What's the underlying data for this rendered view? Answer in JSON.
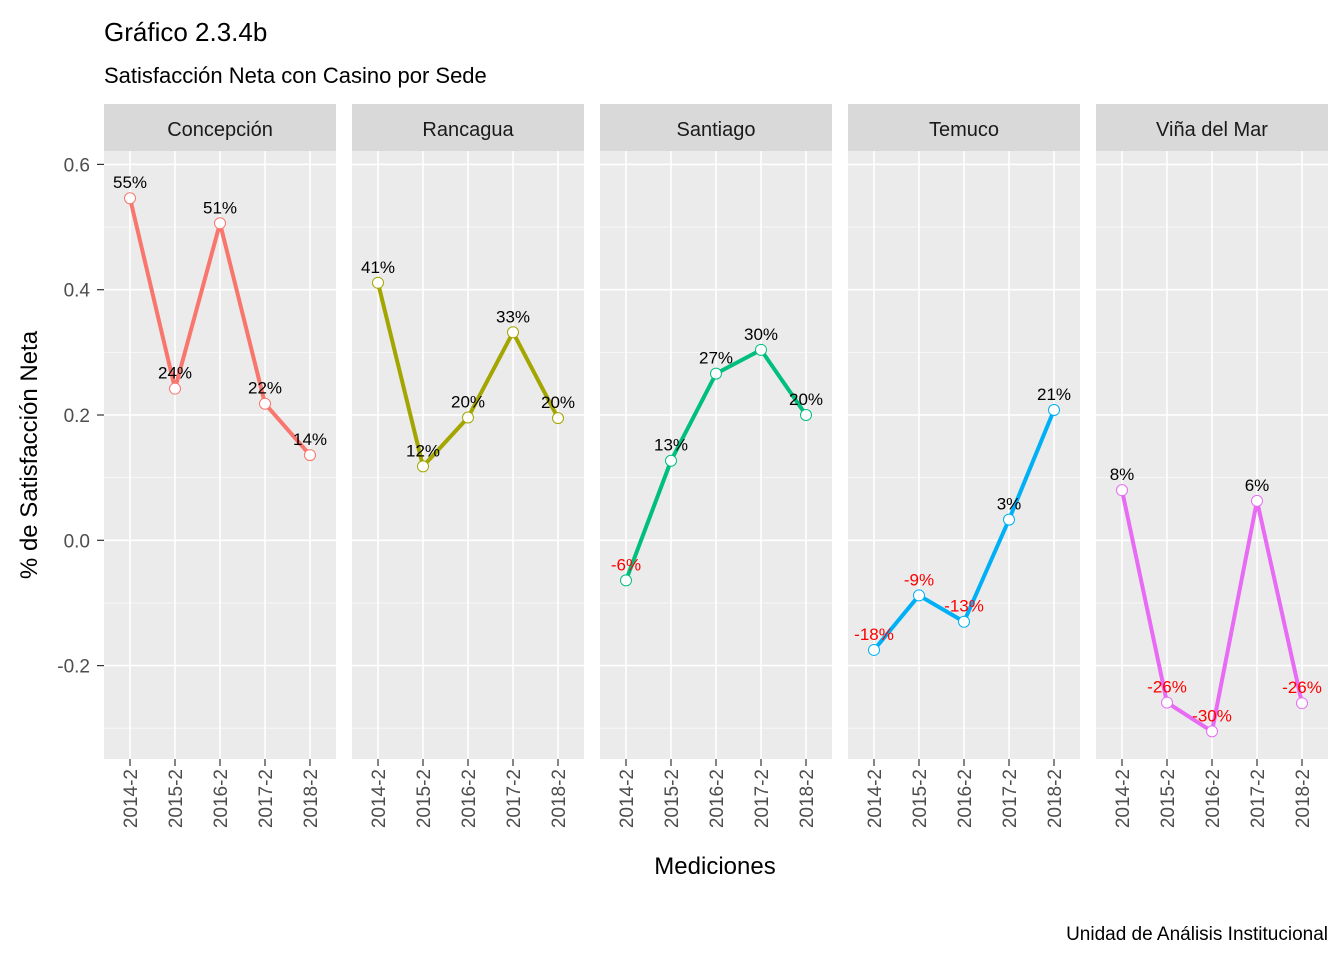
{
  "chart_data": {
    "type": "line",
    "title": "Gráfico 2.3.4b",
    "subtitle": "Satisfacción Neta con Casino por Sede",
    "xlabel": "Mediciones",
    "ylabel": "% de Satisfacción Neta",
    "caption": "Unidad de Análisis Institucional",
    "categories": [
      "2014-2",
      "2015-2",
      "2016-2",
      "2017-2",
      "2018-2"
    ],
    "ylim": [
      -0.35,
      0.6
    ],
    "yticks": [
      -0.2,
      0.0,
      0.2,
      0.4,
      0.6
    ],
    "ytick_labels": [
      "-0.2",
      "0.0",
      "0.2",
      "0.4",
      "0.6"
    ],
    "grid": true,
    "negative_label_color": "#ff0000",
    "positive_label_color": "#000000",
    "series": [
      {
        "name": "Concepción",
        "color": "#f8766d",
        "values": [
          0.546,
          0.242,
          0.506,
          0.218,
          0.136
        ],
        "labels": [
          "55%",
          "24%",
          "51%",
          "22%",
          "14%"
        ]
      },
      {
        "name": "Rancagua",
        "color": "#a3a500",
        "values": [
          0.411,
          0.118,
          0.196,
          0.332,
          0.195
        ],
        "labels": [
          "41%",
          "12%",
          "20%",
          "33%",
          "20%"
        ]
      },
      {
        "name": "Santiago",
        "color": "#00bf7d",
        "values": [
          -0.064,
          0.127,
          0.266,
          0.304,
          0.2
        ],
        "labels": [
          "-6%",
          "13%",
          "27%",
          "30%",
          "20%"
        ]
      },
      {
        "name": "Temuco",
        "color": "#00b0f6",
        "values": [
          -0.175,
          -0.088,
          -0.13,
          0.033,
          0.208
        ],
        "labels": [
          "-18%",
          "-9%",
          "-13%",
          "3%",
          "21%"
        ]
      },
      {
        "name": "Viña del Mar",
        "color": "#e76bf3",
        "values": [
          0.08,
          -0.259,
          -0.305,
          0.063,
          -0.26
        ],
        "labels": [
          "8%",
          "-26%",
          "-30%",
          "6%",
          "-26%"
        ]
      }
    ]
  }
}
